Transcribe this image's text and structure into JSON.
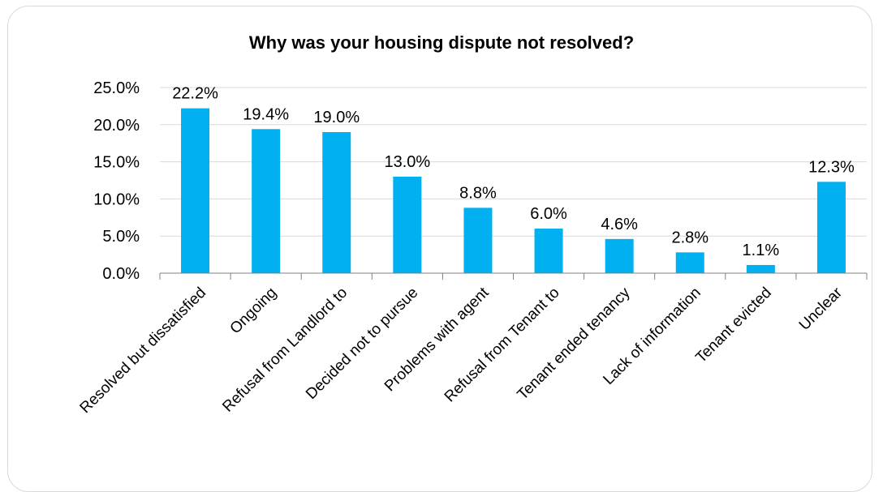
{
  "chart_data": {
    "type": "bar",
    "title": "Why was your housing dispute not resolved?",
    "categories": [
      "Resolved but dissatisfied",
      "Ongoing",
      "Refusal from Landlord to",
      "Decided not to pursue",
      "Problems with agent",
      "Refusal from Tenant to",
      "Tenant ended tenancy",
      "Lack of information",
      "Tenant evicted",
      "Unclear"
    ],
    "values": [
      22.2,
      19.4,
      19.0,
      13.0,
      8.8,
      6.0,
      4.6,
      2.8,
      1.1,
      12.3
    ],
    "data_labels": [
      "22.2%",
      "19.4%",
      "19.0%",
      "13.0%",
      "8.8%",
      "6.0%",
      "4.6%",
      "2.8%",
      "1.1%",
      "12.3%"
    ],
    "y_ticks": [
      "0.0%",
      "5.0%",
      "10.0%",
      "15.0%",
      "20.0%",
      "25.0%"
    ],
    "ylim": [
      0,
      25
    ],
    "xlabel": "",
    "ylabel": "",
    "grid": true,
    "legend": "none",
    "bar_color": "#00b0f0"
  }
}
